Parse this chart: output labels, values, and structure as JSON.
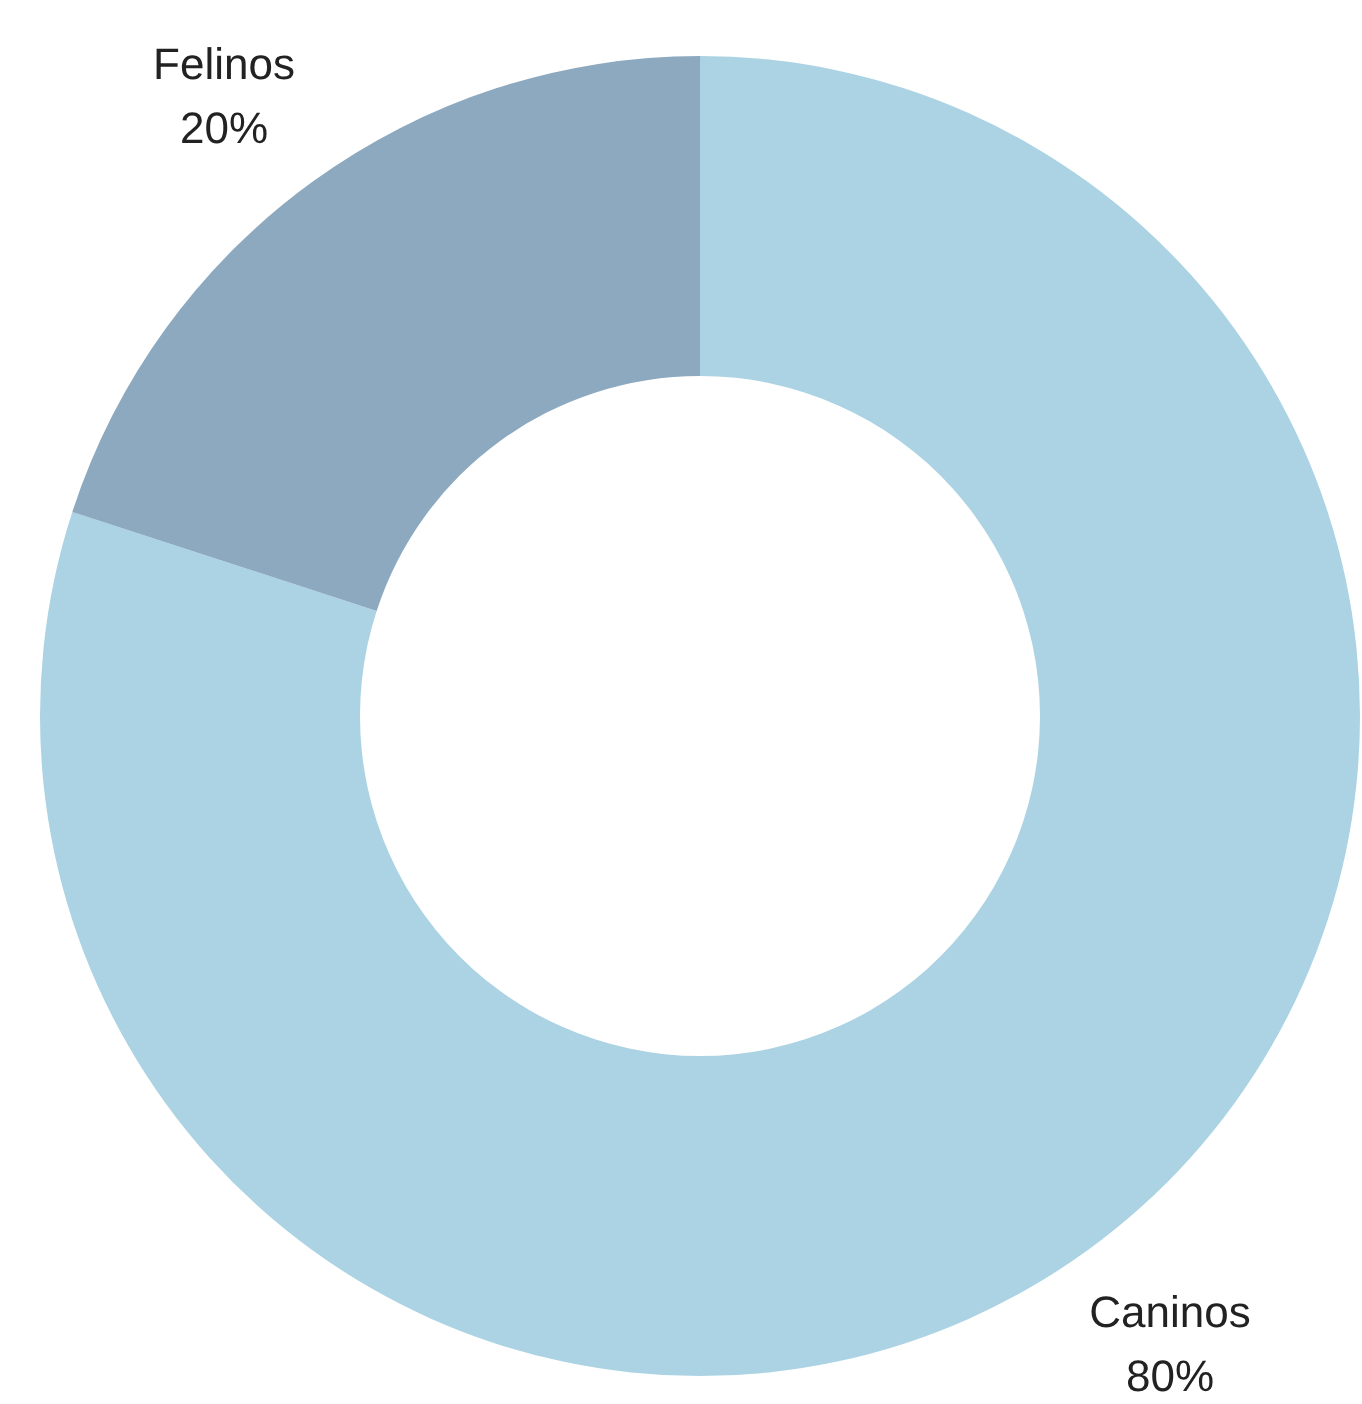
{
  "chart_data": {
    "type": "donut",
    "categories": [
      "Caninos",
      "Felinos"
    ],
    "values": [
      80,
      20
    ],
    "value_labels": [
      "80%",
      "20%"
    ],
    "colors": [
      "#abd3e4",
      "#8da9c0"
    ]
  }
}
